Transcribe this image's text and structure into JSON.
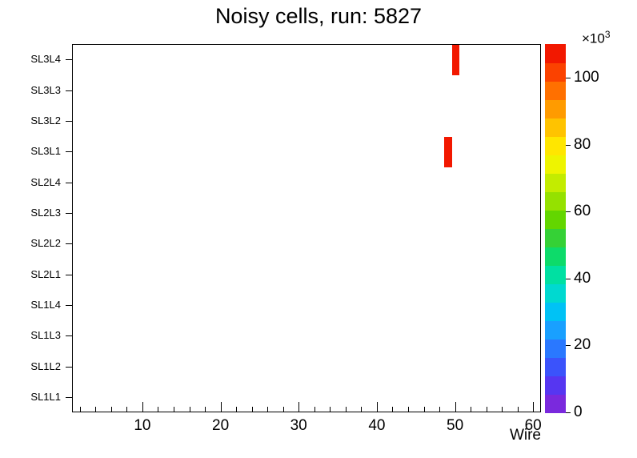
{
  "chart_data": {
    "type": "heatmap",
    "title": "Noisy cells, run: 5827",
    "xlabel": "Wire",
    "x_min": 1,
    "x_max": 61,
    "x_major_ticks": [
      10,
      20,
      30,
      40,
      50,
      60
    ],
    "x_minor_tick_step": 2,
    "y_categories": [
      "SL1L1",
      "SL1L2",
      "SL1L3",
      "SL1L4",
      "SL2L1",
      "SL2L2",
      "SL2L3",
      "SL2L4",
      "SL3L1",
      "SL3L2",
      "SL3L3",
      "SL3L4"
    ],
    "cells": [
      {
        "wire": 50,
        "layer": "SL3L4",
        "value": 110000,
        "color": "#f21800"
      },
      {
        "wire": 49,
        "layer": "SL3L1",
        "value": 110000,
        "color": "#f21800"
      }
    ],
    "colorbar": {
      "min": 0,
      "max": 110,
      "major_ticks": [
        0,
        20,
        40,
        60,
        80,
        100
      ],
      "exponent_base": "×10",
      "exponent_power": "3",
      "palette": [
        "#7a29dd",
        "#5636f1",
        "#3b53fb",
        "#2a78ff",
        "#19a0ff",
        "#00c2f5",
        "#00d9d0",
        "#00e0a2",
        "#0ddb6a",
        "#35d136",
        "#63d600",
        "#95e100",
        "#c3ec00",
        "#eef400",
        "#ffe600",
        "#ffc300",
        "#ff9b00",
        "#ff7000",
        "#fb4200",
        "#f21800"
      ]
    },
    "grid": false,
    "legend_position": "right-colorbar"
  }
}
